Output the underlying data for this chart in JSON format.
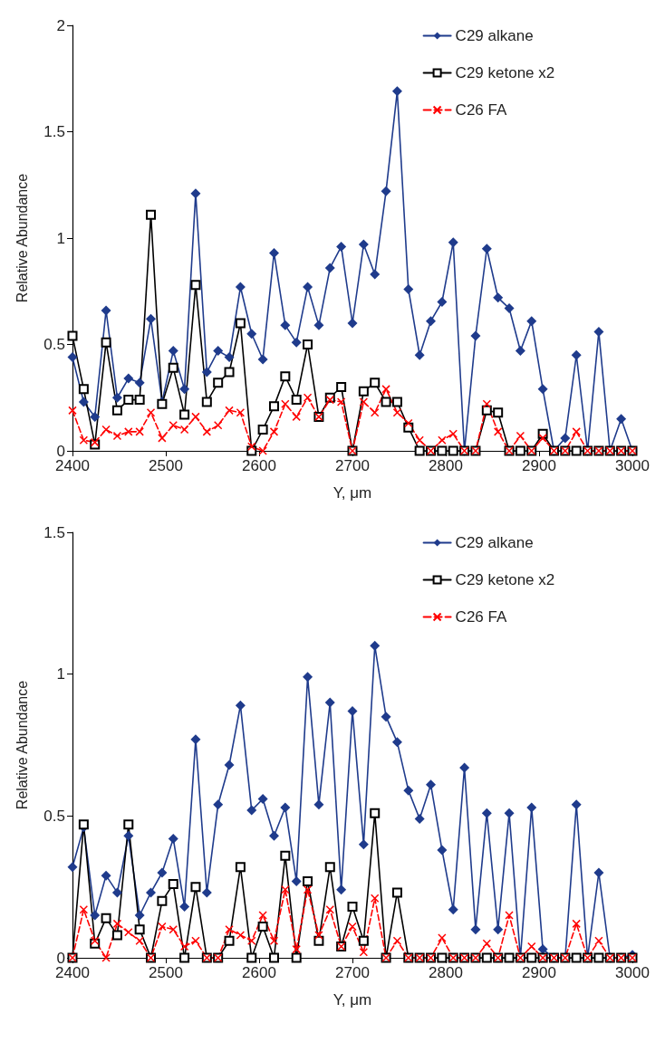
{
  "chart_data": [
    {
      "type": "line",
      "xlabel": "Y, μm",
      "ylabel": "Relative Abundance",
      "xlim": [
        2400,
        3000
      ],
      "xticks": [
        2400,
        2500,
        2600,
        2700,
        2800,
        2900,
        3000
      ],
      "ylim": [
        0,
        2
      ],
      "yticks": [
        0,
        0.5,
        1,
        1.5,
        2
      ],
      "grid": false,
      "legend": "top right",
      "x": [
        2400,
        2412,
        2424,
        2436,
        2448,
        2460,
        2472,
        2484,
        2496,
        2508,
        2520,
        2532,
        2544,
        2556,
        2568,
        2580,
        2592,
        2604,
        2616,
        2628,
        2640,
        2652,
        2664,
        2676,
        2688,
        2700,
        2712,
        2724,
        2736,
        2748,
        2760,
        2772,
        2784,
        2796,
        2808,
        2820,
        2832,
        2844,
        2856,
        2868,
        2880,
        2892,
        2904,
        2916,
        2928,
        2940,
        2952,
        2964,
        2976,
        2988,
        3000
      ],
      "series": [
        {
          "name": "C29 alkane",
          "color": "#1f3b8c",
          "marker": "diamond",
          "line_style": "solid",
          "values": [
            0.44,
            0.23,
            0.16,
            0.66,
            0.25,
            0.34,
            0.32,
            0.62,
            0.23,
            0.47,
            0.29,
            1.21,
            0.37,
            0.47,
            0.44,
            0.77,
            0.55,
            0.43,
            0.93,
            0.59,
            0.51,
            0.77,
            0.59,
            0.86,
            0.96,
            0.6,
            0.97,
            0.83,
            1.22,
            1.69,
            0.76,
            0.45,
            0.61,
            0.7,
            0.98,
            0,
            0.54,
            0.95,
            0.72,
            0.67,
            0.47,
            0.61,
            0.29,
            0,
            0.06,
            0.45,
            0,
            0.56,
            0,
            0.15,
            0
          ]
        },
        {
          "name": "C29 ketone x2",
          "color": "#000000",
          "marker": "square",
          "line_style": "solid",
          "values": [
            0.54,
            0.29,
            0.03,
            0.51,
            0.19,
            0.24,
            0.24,
            1.11,
            0.22,
            0.39,
            0.17,
            0.78,
            0.23,
            0.32,
            0.37,
            0.6,
            0,
            0.1,
            0.21,
            0.35,
            0.24,
            0.5,
            0.16,
            0.25,
            0.3,
            0,
            0.28,
            0.32,
            0.23,
            0.23,
            0.11,
            0,
            0,
            0,
            0,
            0,
            0,
            0.19,
            0.18,
            0,
            0,
            0,
            0.08,
            0,
            0,
            0,
            0,
            0,
            0,
            0,
            0
          ]
        },
        {
          "name": "C26 FA",
          "color": "#ff0000",
          "marker": "cross",
          "line_style": "dashed",
          "values": [
            0.19,
            0.05,
            0.04,
            0.1,
            0.07,
            0.09,
            0.09,
            0.18,
            0.06,
            0.12,
            0.1,
            0.16,
            0.09,
            0.12,
            0.19,
            0.18,
            0.02,
            0,
            0.09,
            0.22,
            0.16,
            0.25,
            0.16,
            0.24,
            0.23,
            0,
            0.23,
            0.18,
            0.29,
            0.18,
            0.13,
            0.05,
            0,
            0.05,
            0.08,
            0,
            0,
            0.22,
            0.09,
            0,
            0.07,
            0,
            0.06,
            0,
            0,
            0.09,
            0,
            0,
            0,
            0,
            0
          ]
        }
      ]
    },
    {
      "type": "line",
      "xlabel": "Y, μm",
      "ylabel": "Relative Abundance",
      "xlim": [
        2400,
        3000
      ],
      "xticks": [
        2400,
        2500,
        2600,
        2700,
        2800,
        2900,
        3000
      ],
      "ylim": [
        0,
        1.5
      ],
      "yticks": [
        0,
        0.5,
        1,
        1.5
      ],
      "grid": false,
      "legend": "top right",
      "x": [
        2400,
        2412,
        2424,
        2436,
        2448,
        2460,
        2472,
        2484,
        2496,
        2508,
        2520,
        2532,
        2544,
        2556,
        2568,
        2580,
        2592,
        2604,
        2616,
        2628,
        2640,
        2652,
        2664,
        2676,
        2688,
        2700,
        2712,
        2724,
        2736,
        2748,
        2760,
        2772,
        2784,
        2796,
        2808,
        2820,
        2832,
        2844,
        2856,
        2868,
        2880,
        2892,
        2904,
        2916,
        2928,
        2940,
        2952,
        2964,
        2976,
        2988,
        3000
      ],
      "series": [
        {
          "name": "C29 alkane",
          "color": "#1f3b8c",
          "marker": "diamond",
          "line_style": "solid",
          "values": [
            0.32,
            0.46,
            0.15,
            0.29,
            0.23,
            0.43,
            0.15,
            0.23,
            0.3,
            0.42,
            0.18,
            0.77,
            0.23,
            0.54,
            0.68,
            0.89,
            0.52,
            0.56,
            0.43,
            0.53,
            0.27,
            0.99,
            0.54,
            0.9,
            0.24,
            0.87,
            0.4,
            1.1,
            0.85,
            0.76,
            0.59,
            0.49,
            0.61,
            0.38,
            0.17,
            0.67,
            0.1,
            0.51,
            0.1,
            0.51,
            0,
            0.53,
            0.03,
            0,
            0,
            0.54,
            0,
            0.3,
            0,
            0,
            0.01
          ]
        },
        {
          "name": "C29 ketone x2",
          "color": "#000000",
          "marker": "square",
          "line_style": "solid",
          "values": [
            0,
            0.47,
            0.05,
            0.14,
            0.08,
            0.47,
            0.1,
            0,
            0.2,
            0.26,
            0,
            0.25,
            0,
            0,
            0.06,
            0.32,
            0,
            0.11,
            0,
            0.36,
            0,
            0.27,
            0.06,
            0.32,
            0.04,
            0.18,
            0.06,
            0.51,
            0,
            0.23,
            0,
            0,
            0,
            0,
            0,
            0,
            0,
            0,
            0,
            0,
            0,
            0,
            0,
            0,
            0,
            0,
            0,
            0,
            0,
            0,
            0
          ]
        },
        {
          "name": "C26 FA",
          "color": "#ff0000",
          "marker": "cross",
          "line_style": "dashed",
          "values": [
            0,
            0.17,
            0.06,
            0,
            0.12,
            0.09,
            0.06,
            0,
            0.11,
            0.1,
            0.04,
            0.06,
            0,
            0,
            0.1,
            0.08,
            0.06,
            0.15,
            0.06,
            0.24,
            0.03,
            0.24,
            0.08,
            0.17,
            0.04,
            0.11,
            0.02,
            0.21,
            0,
            0.06,
            0,
            0,
            0,
            0.07,
            0,
            0,
            0,
            0.05,
            0,
            0.15,
            0,
            0.04,
            0,
            0,
            0,
            0.12,
            0,
            0.06,
            0,
            0,
            0
          ]
        }
      ]
    }
  ]
}
